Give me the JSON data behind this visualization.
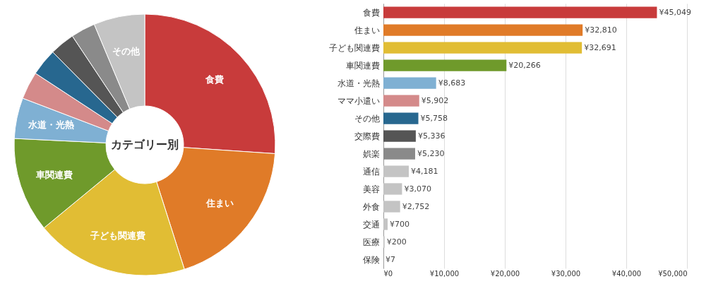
{
  "chart_data": [
    {
      "type": "donut",
      "categories": [
        "食費",
        "住まい",
        "子ども関連費",
        "車関連費",
        "水道・光熱",
        null,
        null,
        null,
        null,
        "その他"
      ],
      "values": [
        26.08,
        19.01,
        18.94,
        11.74,
        5.03,
        3.42,
        3.34,
        3.09,
        3.03,
        6.32
      ],
      "colors": [
        "#c83b3b",
        "#e07b28",
        "#e1bd34",
        "#6f9a2b",
        "#7fb0d3",
        "#d48a8a",
        "#27678f",
        "#555555",
        "#8a8a8a",
        "#c4c4c4"
      ],
      "annotations": [
        "カテゴリー別"
      ]
    },
    {
      "type": "bar",
      "orientation": "horizontal",
      "categories": [
        "食費",
        "住まい",
        "子ども関連費",
        "車関連費",
        "水道・光熱",
        "ママ小遣い",
        "その他",
        "交際費",
        "娯楽",
        "通信",
        "美容",
        "外食",
        "交通",
        "医療",
        "保険"
      ],
      "values": [
        45049,
        32810,
        32691,
        20266,
        8683,
        5902,
        5758,
        5336,
        5230,
        4181,
        3070,
        2752,
        700,
        200,
        7
      ],
      "colors": [
        "#c83b3b",
        "#e07b28",
        "#e1bd34",
        "#6f9a2b",
        "#7fb0d3",
        "#d48a8a",
        "#27678f",
        "#555555",
        "#8a8a8a",
        "#c4c4c4",
        "#c4c4c4",
        "#c4c4c4",
        "#c4c4c4",
        "#c4c4c4",
        "#c4c4c4"
      ],
      "value_labels": [
        "¥45,049",
        "¥32,810",
        "¥32,691",
        "¥20,266",
        "¥8,683",
        "¥5,902",
        "¥5,758",
        "¥5,336",
        "¥5,230",
        "¥4,181",
        "¥3,070",
        "¥2,752",
        "¥700",
        "¥200",
        "¥7"
      ],
      "xlim": [
        0,
        50000
      ],
      "xticks": [
        {
          "value": 0,
          "label": "¥0"
        },
        {
          "value": 10000,
          "label": "¥10,000"
        },
        {
          "value": 20000,
          "label": "¥20,000"
        },
        {
          "value": 30000,
          "label": "¥30,000"
        },
        {
          "value": 40000,
          "label": "¥40,000"
        },
        {
          "value": 50000,
          "label": "¥50,000"
        }
      ],
      "grid": "x"
    }
  ]
}
